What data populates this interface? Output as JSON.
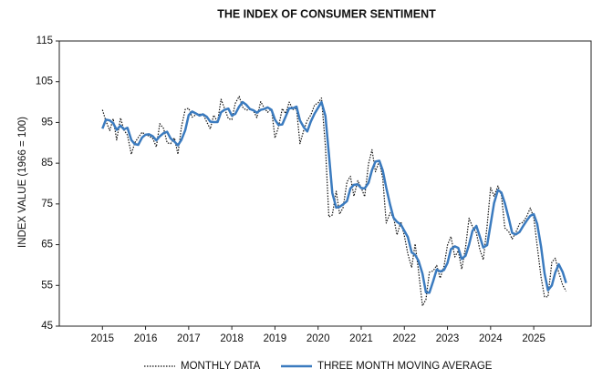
{
  "chart_data": {
    "type": "line",
    "title": "THE INDEX OF CONSUMER SENTIMENT",
    "y_label": "INDEX VALUE (1966 = 100)",
    "x": [
      2015,
      2015.08,
      2015.17,
      2015.25,
      2015.33,
      2015.42,
      2015.5,
      2015.58,
      2015.67,
      2015.75,
      2015.83,
      2015.92,
      2016,
      2016.08,
      2016.17,
      2016.25,
      2016.33,
      2016.42,
      2016.5,
      2016.58,
      2016.67,
      2016.75,
      2016.83,
      2016.92,
      2017,
      2017.08,
      2017.17,
      2017.25,
      2017.33,
      2017.42,
      2017.5,
      2017.58,
      2017.67,
      2017.75,
      2017.83,
      2017.92,
      2018,
      2018.08,
      2018.17,
      2018.25,
      2018.33,
      2018.42,
      2018.5,
      2018.58,
      2018.67,
      2018.75,
      2018.83,
      2018.92,
      2019,
      2019.08,
      2019.17,
      2019.25,
      2019.33,
      2019.42,
      2019.5,
      2019.58,
      2019.67,
      2019.75,
      2019.83,
      2019.92,
      2020,
      2020.08,
      2020.17,
      2020.25,
      2020.33,
      2020.42,
      2020.5,
      2020.58,
      2020.67,
      2020.75,
      2020.83,
      2020.92,
      2021,
      2021.08,
      2021.17,
      2021.25,
      2021.33,
      2021.42,
      2021.5,
      2021.58,
      2021.67,
      2021.75,
      2021.83,
      2021.92,
      2022,
      2022.08,
      2022.17,
      2022.25,
      2022.33,
      2022.42,
      2022.5,
      2022.58,
      2022.67,
      2022.75,
      2022.83,
      2022.92,
      2023,
      2023.08,
      2023.17,
      2023.25,
      2023.33,
      2023.42,
      2023.5,
      2023.58,
      2023.67,
      2023.75,
      2023.83,
      2023.92,
      2024,
      2024.08,
      2024.17,
      2024.25,
      2024.33,
      2024.42,
      2024.5,
      2024.58,
      2024.67,
      2024.75,
      2024.83,
      2024.92,
      2025,
      2025.08,
      2025.17,
      2025.25,
      2025.33,
      2025.42,
      2025.5,
      2025.58,
      2025.67,
      2025.75
    ],
    "series": [
      {
        "name": "MONTHLY DATA",
        "color": "#111111",
        "dotted": true,
        "values": [
          98.1,
          95.4,
          93.0,
          95.9,
          90.7,
          96.1,
          93.1,
          91.9,
          87.2,
          90.0,
          91.3,
          92.6,
          92.0,
          91.7,
          91.0,
          89.0,
          94.7,
          93.5,
          90.0,
          89.8,
          91.2,
          87.2,
          93.8,
          98.2,
          98.5,
          96.3,
          96.9,
          97.0,
          97.1,
          95.1,
          93.4,
          96.8,
          95.1,
          100.7,
          98.5,
          95.9,
          95.7,
          99.7,
          101.4,
          98.8,
          98.0,
          98.2,
          97.9,
          96.2,
          100.1,
          98.6,
          97.5,
          98.3,
          91.2,
          93.8,
          98.4,
          97.2,
          100.0,
          98.2,
          98.4,
          89.8,
          93.2,
          95.5,
          96.8,
          99.3,
          99.8,
          101.0,
          89.1,
          71.8,
          72.3,
          78.1,
          72.5,
          74.1,
          80.4,
          81.8,
          76.9,
          80.7,
          79.0,
          76.8,
          84.9,
          88.3,
          82.9,
          85.5,
          81.2,
          70.3,
          72.8,
          71.7,
          67.4,
          70.6,
          67.2,
          62.8,
          59.4,
          65.2,
          58.4,
          50.0,
          51.5,
          58.2,
          58.6,
          59.9,
          56.8,
          59.7,
          64.9,
          67.0,
          62.0,
          63.5,
          59.0,
          64.4,
          71.5,
          69.4,
          67.9,
          63.8,
          61.3,
          69.7,
          79.0,
          76.9,
          79.4,
          77.2,
          69.1,
          68.2,
          66.4,
          67.9,
          70.1,
          70.5,
          71.8,
          74.0,
          71.7,
          64.7,
          57.0,
          52.2,
          52.2,
          60.7,
          61.7,
          58.2,
          55.1,
          53.6
        ]
      },
      {
        "name": "THREE MONTH MOVING AVERAGE",
        "color": "#3b7bbf",
        "dotted": false,
        "values": [
          93.5,
          95.7,
          95.5,
          94.8,
          93.2,
          94.2,
          93.3,
          93.7,
          90.7,
          89.7,
          89.5,
          91.3,
          92.0,
          92.1,
          91.6,
          90.6,
          91.6,
          92.4,
          92.7,
          91.1,
          90.3,
          89.4,
          90.7,
          93.1,
          96.8,
          97.7,
          97.2,
          96.7,
          97.0,
          96.4,
          95.2,
          95.1,
          95.1,
          97.5,
          98.1,
          98.4,
          96.7,
          97.1,
          98.9,
          100.0,
          99.4,
          98.3,
          98.0,
          97.4,
          98.1,
          98.3,
          98.7,
          98.1,
          95.7,
          94.4,
          94.5,
          96.5,
          98.5,
          98.5,
          98.9,
          95.5,
          93.8,
          92.8,
          95.2,
          97.2,
          98.6,
          100.0,
          96.6,
          87.3,
          77.7,
          74.1,
          74.3,
          74.9,
          75.7,
          78.8,
          79.7,
          79.8,
          78.9,
          78.8,
          80.2,
          83.3,
          85.4,
          85.6,
          83.2,
          79.0,
          74.8,
          71.6,
          70.6,
          69.9,
          68.4,
          66.9,
          63.1,
          62.5,
          61.0,
          57.9,
          53.3,
          53.2,
          56.1,
          58.9,
          58.4,
          58.8,
          60.5,
          63.9,
          64.6,
          64.2,
          61.5,
          62.3,
          65.0,
          68.4,
          69.6,
          67.0,
          64.3,
          64.9,
          70.0,
          75.2,
          78.4,
          77.8,
          75.2,
          71.5,
          67.9,
          67.5,
          68.1,
          69.5,
          70.8,
          72.1,
          72.5,
          70.1,
          64.5,
          58.0,
          53.8,
          55.0,
          58.2,
          60.2,
          58.3,
          55.6
        ]
      }
    ],
    "xlim": [
      2014,
      2026.33
    ],
    "xticks": [
      2015,
      2016,
      2017,
      2018,
      2019,
      2020,
      2021,
      2022,
      2023,
      2024,
      2025
    ],
    "ylim": [
      45,
      115
    ],
    "yticks": [
      45,
      55,
      65,
      75,
      85,
      95,
      105,
      115
    ],
    "grid": false,
    "legend": "bottom"
  }
}
